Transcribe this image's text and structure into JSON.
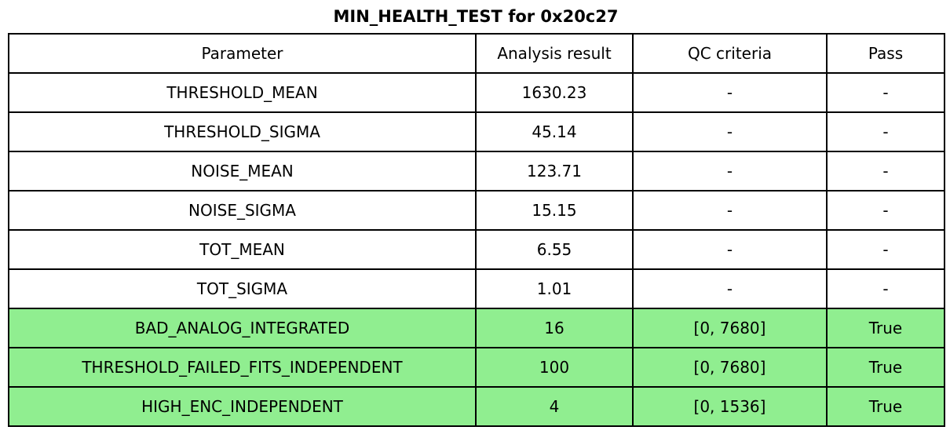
{
  "title": "MIN_HEALTH_TEST for 0x20c27",
  "chart_data": {
    "type": "table",
    "title": "MIN_HEALTH_TEST for 0x20c27",
    "columns": [
      "Parameter",
      "Analysis result",
      "QC criteria",
      "Pass"
    ],
    "rows": [
      {
        "parameter": "THRESHOLD_MEAN",
        "analysis_result": "1630.23",
        "qc_criteria": "-",
        "pass": "-",
        "highlighted": false
      },
      {
        "parameter": "THRESHOLD_SIGMA",
        "analysis_result": "45.14",
        "qc_criteria": "-",
        "pass": "-",
        "highlighted": false
      },
      {
        "parameter": "NOISE_MEAN",
        "analysis_result": "123.71",
        "qc_criteria": "-",
        "pass": "-",
        "highlighted": false
      },
      {
        "parameter": "NOISE_SIGMA",
        "analysis_result": "15.15",
        "qc_criteria": "-",
        "pass": "-",
        "highlighted": false
      },
      {
        "parameter": "TOT_MEAN",
        "analysis_result": "6.55",
        "qc_criteria": "-",
        "pass": "-",
        "highlighted": false
      },
      {
        "parameter": "TOT_SIGMA",
        "analysis_result": "1.01",
        "qc_criteria": "-",
        "pass": "-",
        "highlighted": false
      },
      {
        "parameter": "BAD_ANALOG_INTEGRATED",
        "analysis_result": "16",
        "qc_criteria": "[0, 7680]",
        "pass": "True",
        "highlighted": true
      },
      {
        "parameter": "THRESHOLD_FAILED_FITS_INDEPENDENT",
        "analysis_result": "100",
        "qc_criteria": "[0, 7680]",
        "pass": "True",
        "highlighted": true
      },
      {
        "parameter": "HIGH_ENC_INDEPENDENT",
        "analysis_result": "4",
        "qc_criteria": "[0, 1536]",
        "pass": "True",
        "highlighted": true
      }
    ],
    "colors": {
      "highlight_row_background": "#90EE90",
      "border": "#000000",
      "text": "#000000",
      "background": "#FFFFFF"
    },
    "layout": {
      "legend": "none",
      "grid": "table-borders"
    }
  }
}
